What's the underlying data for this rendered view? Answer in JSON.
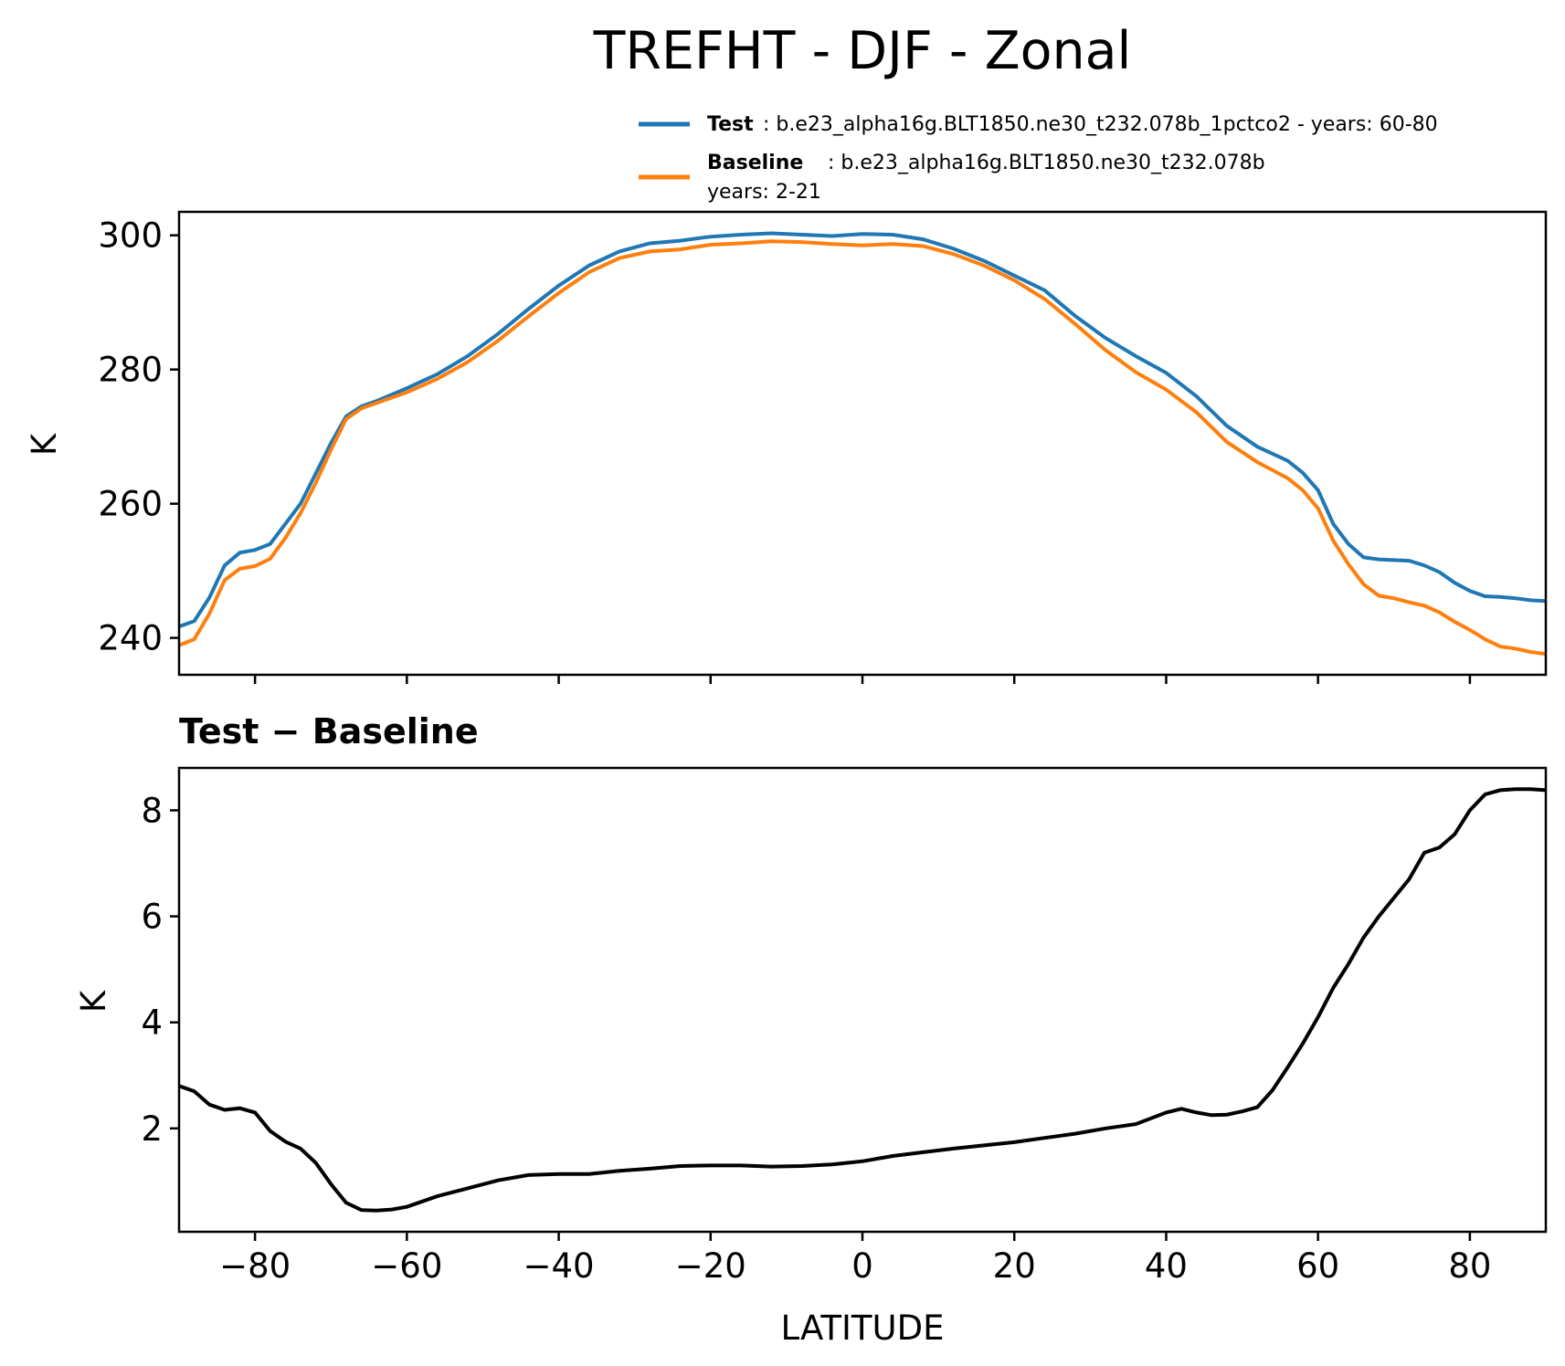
{
  "chart_data": [
    {
      "type": "line",
      "title": "TREFHT - DJF - Zonal",
      "xlabel": "",
      "ylabel": "K",
      "xlim": [
        -90,
        90
      ],
      "ylim": [
        234.5,
        303.5
      ],
      "yticks": [
        240,
        260,
        280,
        300
      ],
      "ytick_labels": [
        "240",
        "260",
        "280",
        "300"
      ],
      "xticks": [
        -80,
        -60,
        -40,
        -20,
        0,
        20,
        40,
        60,
        80
      ],
      "legend": {
        "placement": "above-right",
        "entries": [
          {
            "name": "Test",
            "label": "Test",
            "text": ": b.e23_alpha16g.BLT1850.ne30_t232.078b_1pctco2 - years: 60-80",
            "line2": ""
          },
          {
            "name": "Baseline",
            "label": "Baseline",
            "text": ": b.e23_alpha16g.BLT1850.ne30_t232.078b",
            "line2": "years: 2-21"
          }
        ]
      },
      "series": [
        {
          "name": "Test",
          "color": "#1f77b4",
          "x": [
            -90,
            -88,
            -86,
            -84,
            -82,
            -80,
            -78,
            -76,
            -74,
            -72,
            -70,
            -68,
            -66,
            -64,
            -60,
            -56,
            -52,
            -48,
            -44,
            -40,
            -36,
            -32,
            -28,
            -24,
            -20,
            -16,
            -12,
            -8,
            -4,
            0,
            4,
            8,
            12,
            16,
            20,
            24,
            28,
            32,
            36,
            40,
            44,
            48,
            52,
            56,
            58,
            60,
            62,
            64,
            66,
            68,
            70,
            72,
            74,
            76,
            78,
            80,
            82,
            84,
            86,
            88,
            90
          ],
          "values": [
            241.7,
            242.5,
            246,
            250.8,
            252.7,
            253.1,
            254,
            257,
            260,
            264.5,
            269,
            273,
            274.5,
            275.3,
            277.2,
            279.3,
            282,
            285.3,
            289,
            292.5,
            295.5,
            297.6,
            298.8,
            299.2,
            299.8,
            300.1,
            300.3,
            300.1,
            299.9,
            300.2,
            300.1,
            299.4,
            298,
            296.2,
            294,
            291.8,
            288,
            284.7,
            282,
            279.5,
            276,
            271.6,
            268.5,
            266.4,
            264.6,
            262,
            257,
            254,
            252,
            251.7,
            251.6,
            251.5,
            250.8,
            249.8,
            248.2,
            247,
            246.2,
            246.1,
            245.9,
            245.6,
            245.5
          ]
        },
        {
          "name": "Baseline",
          "color": "#ff7f0e",
          "x": [
            -90,
            -88,
            -86,
            -84,
            -82,
            -80,
            -78,
            -76,
            -74,
            -72,
            -70,
            -68,
            -66,
            -64,
            -60,
            -56,
            -52,
            -48,
            -44,
            -40,
            -36,
            -32,
            -28,
            -24,
            -20,
            -16,
            -12,
            -8,
            -4,
            0,
            4,
            8,
            12,
            16,
            20,
            24,
            28,
            32,
            36,
            40,
            44,
            48,
            52,
            56,
            58,
            60,
            62,
            64,
            66,
            68,
            70,
            72,
            74,
            76,
            78,
            80,
            82,
            84,
            86,
            88,
            90
          ],
          "values": [
            238.9,
            239.8,
            243.6,
            248.6,
            250.3,
            250.7,
            251.8,
            254.9,
            258.6,
            263.1,
            268,
            272.6,
            274.2,
            275,
            276.6,
            278.6,
            281.1,
            284.3,
            287.9,
            291.4,
            294.5,
            296.6,
            297.6,
            297.9,
            298.6,
            298.8,
            299.1,
            299,
            298.7,
            298.5,
            298.7,
            298.4,
            297.2,
            295.5,
            293.3,
            290.5,
            286.8,
            282.9,
            279.6,
            277,
            273.6,
            269.2,
            266.2,
            263.8,
            262,
            259.3,
            254.5,
            251,
            248,
            246.3,
            245.9,
            245.3,
            244.8,
            243.8,
            242.4,
            241.2,
            239.8,
            238.7,
            238.4,
            237.9,
            237.6
          ]
        }
      ]
    },
    {
      "type": "line",
      "title": "Test − Baseline",
      "xlabel": "LATITUDE",
      "ylabel": "K",
      "xlim": [
        -90,
        90
      ],
      "ylim": [
        0.05,
        8.8
      ],
      "yticks": [
        2,
        4,
        6,
        8
      ],
      "ytick_labels": [
        "2",
        "4",
        "6",
        "8"
      ],
      "xticks": [
        -80,
        -60,
        -40,
        -20,
        0,
        20,
        40,
        60,
        80
      ],
      "xtick_labels": [
        "−80",
        "−60",
        "−40",
        "−20",
        "0",
        "20",
        "40",
        "60",
        "80"
      ],
      "series": [
        {
          "name": "Test − Baseline",
          "color": "#000000",
          "x": [
            -90,
            -88,
            -86,
            -84,
            -82,
            -80,
            -78,
            -76,
            -74,
            -72,
            -70,
            -68,
            -66,
            -64,
            -62,
            -60,
            -56,
            -52,
            -48,
            -44,
            -40,
            -36,
            -32,
            -28,
            -24,
            -20,
            -16,
            -12,
            -8,
            -4,
            0,
            4,
            8,
            12,
            16,
            20,
            24,
            28,
            32,
            36,
            40,
            42,
            44,
            46,
            48,
            50,
            52,
            54,
            56,
            58,
            60,
            62,
            64,
            66,
            68,
            70,
            72,
            74,
            76,
            78,
            80,
            82,
            84,
            86,
            88,
            90
          ],
          "values": [
            2.8,
            2.7,
            2.45,
            2.35,
            2.38,
            2.3,
            1.95,
            1.75,
            1.62,
            1.35,
            0.95,
            0.6,
            0.46,
            0.45,
            0.47,
            0.52,
            0.72,
            0.87,
            1.02,
            1.12,
            1.14,
            1.14,
            1.2,
            1.24,
            1.29,
            1.3,
            1.3,
            1.28,
            1.29,
            1.32,
            1.38,
            1.48,
            1.55,
            1.62,
            1.68,
            1.74,
            1.82,
            1.9,
            2.0,
            2.08,
            2.3,
            2.37,
            2.3,
            2.25,
            2.26,
            2.32,
            2.4,
            2.72,
            3.15,
            3.6,
            4.1,
            4.65,
            5.1,
            5.6,
            6.0,
            6.35,
            6.7,
            7.2,
            7.3,
            7.55,
            8.0,
            8.3,
            8.38,
            8.4,
            8.4,
            8.38
          ]
        }
      ]
    }
  ]
}
